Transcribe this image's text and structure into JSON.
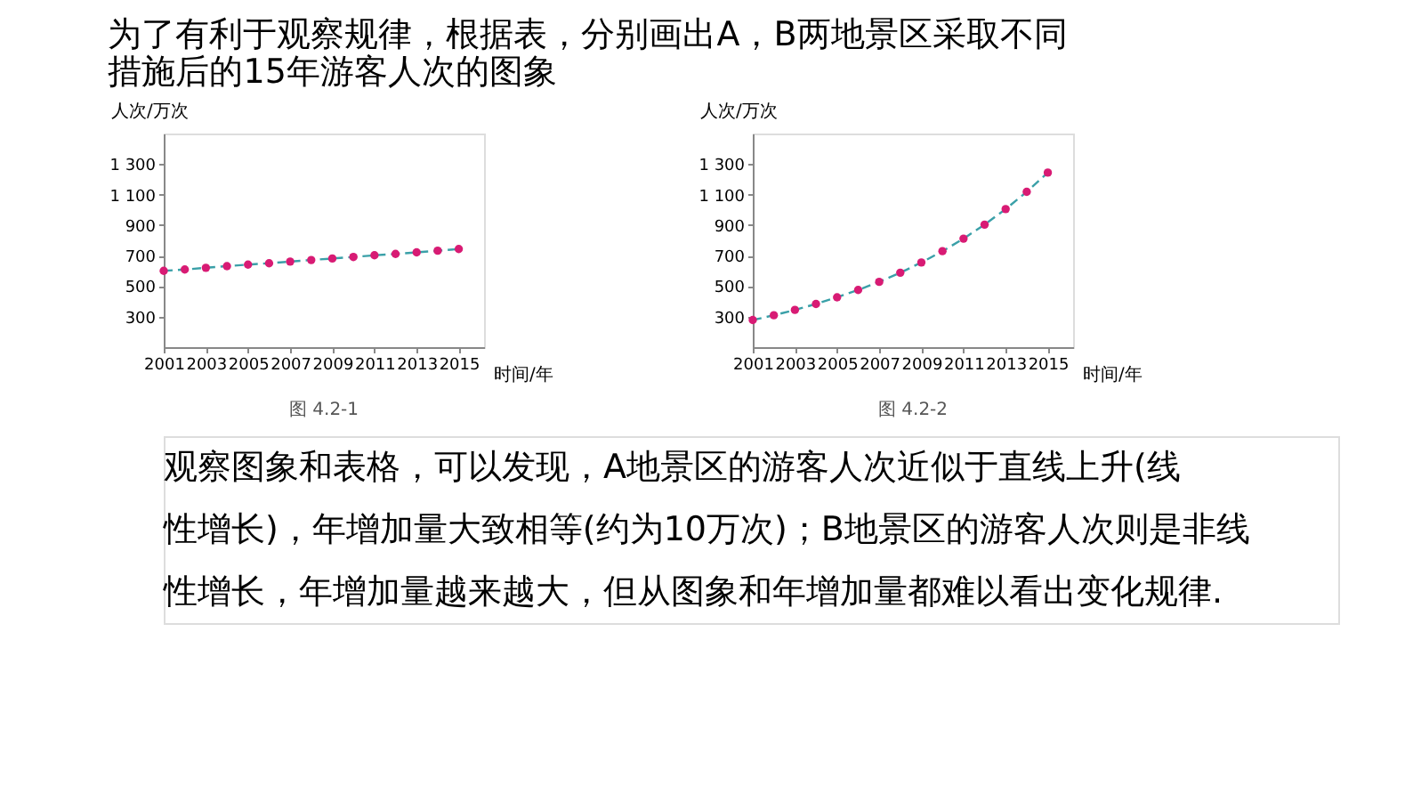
{
  "chart_data": [
    {
      "type": "line",
      "title": "为了有利于观察规律，根据表，分别画出A，B两地景区采取不同措施后的15年游客人次的图象",
      "annotations": [
        "图 4.2-1"
      ],
      "xlabel": "时间/年",
      "ylabel": "人次/万次",
      "x": [
        2001,
        2002,
        2003,
        2004,
        2005,
        2006,
        2007,
        2008,
        2009,
        2010,
        2011,
        2012,
        2013,
        2014,
        2015
      ],
      "series": [
        {
          "color": "#3aa0a8",
          "line_style": "dashed",
          "marker": "none",
          "values": [
            600,
            609,
            620,
            631,
            641,
            650,
            661,
            671,
            681,
            691,
            702,
            711,
            721,
            732,
            743
          ]
        },
        {
          "type": "scatter",
          "color": "#d81b74",
          "marker": "circle",
          "values": [
            600,
            609,
            620,
            631,
            641,
            650,
            661,
            671,
            681,
            691,
            702,
            711,
            721,
            732,
            743
          ]
        }
      ],
      "xlim": [
        2001,
        2016.2
      ],
      "xticks": [
        2001,
        2003,
        2005,
        2007,
        2009,
        2011,
        2013,
        2015
      ],
      "ylim": [
        100,
        1500
      ],
      "yticks": [
        300,
        500,
        700,
        900,
        {
          "value": 1100,
          "label": "1 100"
        },
        {
          "value": 1300,
          "label": "1 300"
        }
      ],
      "grid": false,
      "legend": false
    },
    {
      "type": "line",
      "annotations": [
        "图 4.2-2",
        "观察图象和表格，可以发现，A地景区的游客人次近似于直线上升(线",
        "性增长)，年增加量大致相等(约为10万次)；B地景区的游客人次则是非线",
        "性增长，年增加量越来越大，但从图象和年增加量都难以看出变化规律."
      ],
      "xlabel": "时间/年",
      "ylabel": "人次/万次",
      "x": [
        2001,
        2002,
        2003,
        2004,
        2005,
        2006,
        2007,
        2008,
        2009,
        2010,
        2011,
        2012,
        2013,
        2014,
        2015
      ],
      "series": [
        {
          "color": "#3aa0a8",
          "line_style": "dashed",
          "marker": "none",
          "values": [
            278,
            309,
            344,
            383,
            427,
            475,
            528,
            588,
            655,
            729,
            811,
            903,
            1005,
            1118,
            1244
          ]
        },
        {
          "type": "scatter",
          "color": "#d81b74",
          "marker": "circle",
          "values": [
            278,
            309,
            344,
            383,
            427,
            475,
            528,
            588,
            655,
            729,
            811,
            903,
            1005,
            1118,
            1244
          ]
        }
      ],
      "xlim": [
        2001,
        2016.2
      ],
      "xticks": [
        2001,
        2003,
        2005,
        2007,
        2009,
        2011,
        2013,
        2015
      ],
      "ylim": [
        100,
        1500
      ],
      "yticks": [
        300,
        500,
        700,
        900,
        {
          "value": 1100,
          "label": "1 100"
        },
        {
          "value": 1300,
          "label": "1 300"
        }
      ],
      "grid": false,
      "legend": false
    }
  ]
}
